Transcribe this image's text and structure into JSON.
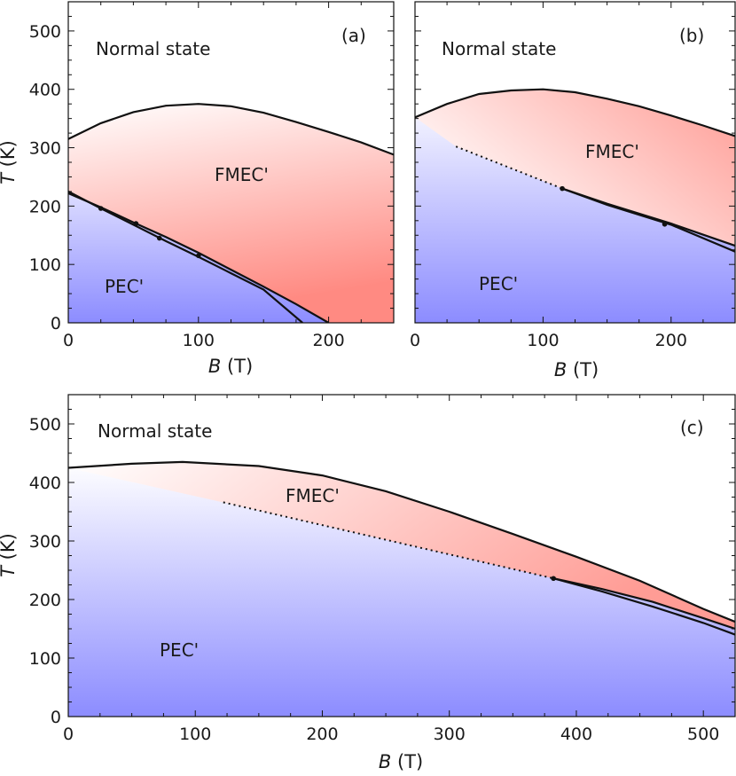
{
  "chart_data": [
    {
      "panel": "(a)",
      "type": "line",
      "xlabel_var": "B",
      "xlabel_unit": " (T)",
      "ylabel_var": "T",
      "ylabel_unit": " (K)",
      "xlim": [
        0,
        250
      ],
      "ylim": [
        0,
        550
      ],
      "xticks": [
        "0",
        "100",
        "200"
      ],
      "xtick_values": [
        0,
        100,
        200
      ],
      "yticks": [
        "0",
        "100",
        "200",
        "300",
        "400",
        "500"
      ],
      "ytick_values": [
        0,
        100,
        200,
        300,
        400,
        500
      ],
      "labels": {
        "normal": "Normal state",
        "fmec": "FMEC'",
        "pec": "PEC'"
      },
      "series": [
        {
          "role": "upper-boundary",
          "style": "solid",
          "x": [
            0,
            25,
            50,
            75,
            100,
            125,
            150,
            175,
            200,
            225,
            250
          ],
          "y": [
            315,
            342,
            361,
            372,
            375,
            371,
            360,
            344,
            327,
            309,
            288
          ]
        },
        {
          "role": "lower-boundary-1",
          "style": "solid",
          "x": [
            0,
            25,
            50,
            75,
            100,
            125,
            150,
            180
          ],
          "y": [
            225,
            196,
            168,
            140,
            113,
            85,
            57,
            0
          ]
        },
        {
          "role": "lower-boundary-2",
          "style": "solid",
          "x": [
            0,
            25,
            50,
            75,
            100,
            125,
            150,
            175,
            200
          ],
          "y": [
            222,
            198,
            172,
            147,
            120,
            91,
            62,
            32,
            0
          ]
        }
      ],
      "points": {
        "x": [
          25,
          52,
          70,
          100
        ],
        "y": [
          196,
          170,
          145,
          115
        ]
      }
    },
    {
      "panel": "(b)",
      "type": "line",
      "xlabel_var": "B",
      "xlabel_unit": " (T)",
      "xlim": [
        0,
        250
      ],
      "ylim": [
        0,
        550
      ],
      "xticks": [
        "0",
        "100",
        "200"
      ],
      "xtick_values": [
        0,
        100,
        200
      ],
      "labels": {
        "normal": "Normal state",
        "fmec": "FMEC'",
        "pec": "PEC'"
      },
      "series": [
        {
          "role": "upper-boundary",
          "style": "solid",
          "x": [
            0,
            25,
            50,
            75,
            100,
            125,
            150,
            175,
            200,
            225,
            250
          ],
          "y": [
            352,
            375,
            392,
            398,
            400,
            395,
            384,
            371,
            355,
            338,
            320
          ]
        },
        {
          "role": "extrapolated-line",
          "style": "dotted",
          "x": [
            32,
            115
          ],
          "y": [
            302,
            230
          ]
        },
        {
          "role": "lower-boundary-1",
          "style": "solid",
          "x": [
            115,
            150,
            200,
            250
          ],
          "y": [
            230,
            202,
            168,
            122
          ]
        },
        {
          "role": "lower-boundary-2",
          "style": "solid",
          "x": [
            115,
            150,
            200,
            250
          ],
          "y": [
            230,
            204,
            170,
            132
          ]
        }
      ],
      "points": {
        "x": [
          115,
          195
        ],
        "y": [
          230,
          169
        ]
      }
    },
    {
      "panel": "(c)",
      "type": "line",
      "xlabel_var": "B",
      "xlabel_unit": " (T)",
      "ylabel_var": "T",
      "ylabel_unit": " (K)",
      "xlim": [
        0,
        525
      ],
      "ylim": [
        0,
        550
      ],
      "xticks": [
        "0",
        "100",
        "200",
        "300",
        "400",
        "500"
      ],
      "xtick_values": [
        0,
        100,
        200,
        300,
        400,
        500
      ],
      "yticks": [
        "0",
        "100",
        "200",
        "300",
        "400",
        "500"
      ],
      "ytick_values": [
        0,
        100,
        200,
        300,
        400,
        500
      ],
      "labels": {
        "normal": "Normal state",
        "fmec": "FMEC'",
        "pec": "PEC'"
      },
      "series": [
        {
          "role": "upper-boundary",
          "style": "solid",
          "x": [
            0,
            50,
            90,
            150,
            200,
            250,
            300,
            350,
            400,
            450,
            500,
            525
          ],
          "y": [
            425,
            432,
            435,
            428,
            412,
            385,
            350,
            312,
            273,
            232,
            184,
            162
          ]
        },
        {
          "role": "extrapolated-line",
          "style": "dotted",
          "x": [
            122,
            382
          ],
          "y": [
            366,
            236
          ]
        },
        {
          "role": "lower-boundary-1",
          "style": "solid",
          "x": [
            382,
            420,
            460,
            500,
            525
          ],
          "y": [
            236,
            214,
            188,
            160,
            140
          ]
        },
        {
          "role": "lower-boundary-2",
          "style": "solid",
          "x": [
            382,
            420,
            460,
            500,
            525
          ],
          "y": [
            236,
            218,
            196,
            168,
            150
          ]
        }
      ],
      "points": {
        "x": [
          382
        ],
        "y": [
          236
        ]
      }
    }
  ],
  "colors": {
    "pec": "#8c8cff",
    "fmec": "#ff8a82",
    "line": "#111111"
  }
}
